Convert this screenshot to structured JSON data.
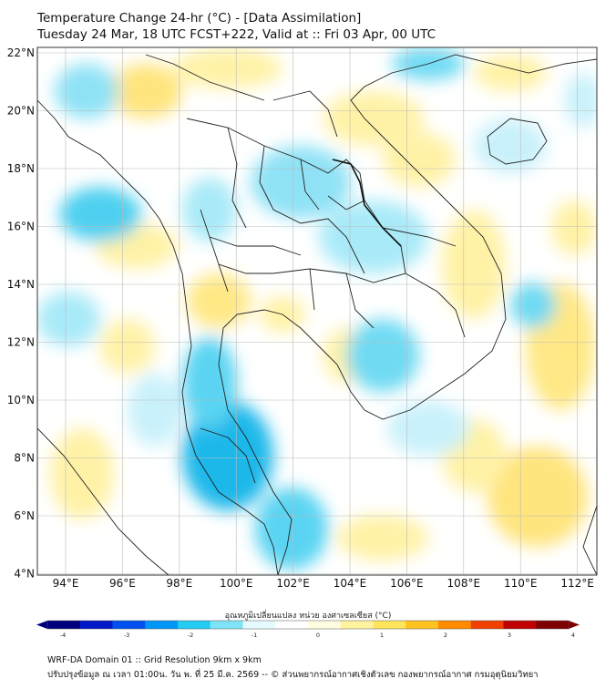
{
  "header": {
    "title_line1": "Temperature Change 24-hr (°C) - [Data Assimilation]",
    "title_line2": "Tuesday 24 Mar, 18 UTC FCST+222, Valid at :: Fri 03 Apr, 00 UTC"
  },
  "map": {
    "lat_labels": [
      "22°N",
      "20°N",
      "18°N",
      "16°N",
      "14°N",
      "12°N",
      "10°N",
      "8°N",
      "6°N",
      "4°N"
    ],
    "lon_labels": [
      "94°E",
      "96°E",
      "98°E",
      "100°E",
      "102°E",
      "104°E",
      "106°E",
      "108°E",
      "110°E",
      "112°E"
    ],
    "colors": {
      "neutral": "#ffffff",
      "warm_light": "#fff6b0",
      "warm": "#ffe066",
      "cool_light": "#c9f1fb",
      "cool": "#5ad4f2",
      "cool_strong": "#1ab8ea",
      "border": "#222222"
    }
  },
  "colorbar": {
    "label": "อุณหภูมิเปลี่ยนแปลง หน่วย องศาเซลเซียส (°C)",
    "ticks": [
      "-4",
      "-3",
      "-2",
      "-1",
      "0",
      "1",
      "2",
      "3",
      "4"
    ],
    "colors": [
      "#00007f",
      "#0018c8",
      "#0050f0",
      "#0096f8",
      "#22ccf2",
      "#7fe3f7",
      "#e6fbff",
      "#ffffff",
      "#fffde0",
      "#fff3a0",
      "#ffe45c",
      "#ffc21e",
      "#ff8a00",
      "#f04000",
      "#c00000",
      "#7f0000"
    ]
  },
  "footer": {
    "line1": "WRF-DA Domain 01 :: Grid Resolution 9km x 9km",
    "line2": "ปรับปรุงข้อมูล ณ เวลา 01:00น. วัน พ. ที่ 25 มี.ค. 2569 -- © ส่วนพยากรณ์อากาศเชิงตัวเลข กองพยากรณ์อากาศ กรมอุตุนิยมวิทยา"
  }
}
